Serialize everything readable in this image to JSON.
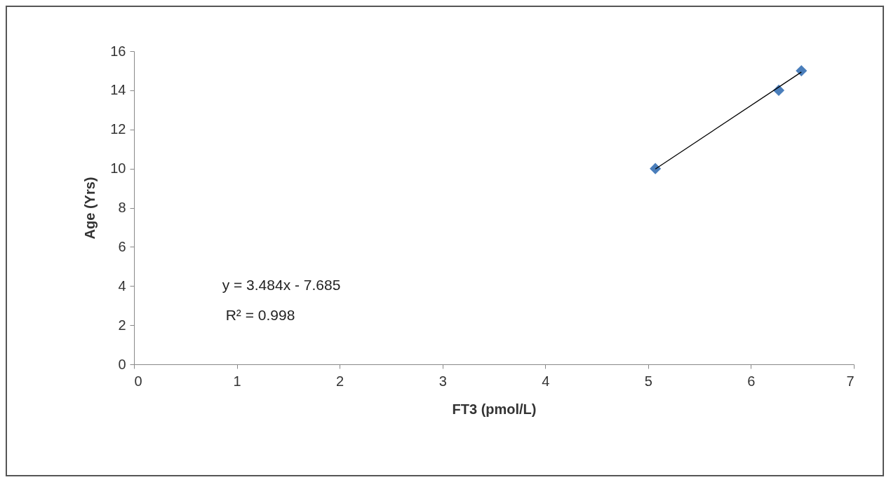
{
  "chart_data": {
    "type": "scatter",
    "xlabel": "FT3 (pmol/L)",
    "ylabel": "Age (Yrs)",
    "xlim": [
      0,
      7
    ],
    "xticks": [
      0,
      1,
      2,
      3,
      4,
      5,
      6,
      7
    ],
    "ylim": [
      0,
      16
    ],
    "yticks": [
      0,
      2,
      4,
      6,
      8,
      10,
      12,
      14,
      16
    ],
    "grid": false,
    "series": [
      {
        "marker": "diamond",
        "color": "#4a7ebb",
        "x": [
          5.07,
          6.27,
          6.49
        ],
        "values": [
          10,
          14,
          15
        ]
      },
      {
        "type": "line",
        "marker": "none",
        "color": "#000000",
        "x": [
          5.07,
          6.49
        ],
        "values": [
          9.98,
          14.93
        ]
      }
    ],
    "annotations": [
      "y = 3.484x - 7.685",
      "R² = 0.998"
    ]
  }
}
